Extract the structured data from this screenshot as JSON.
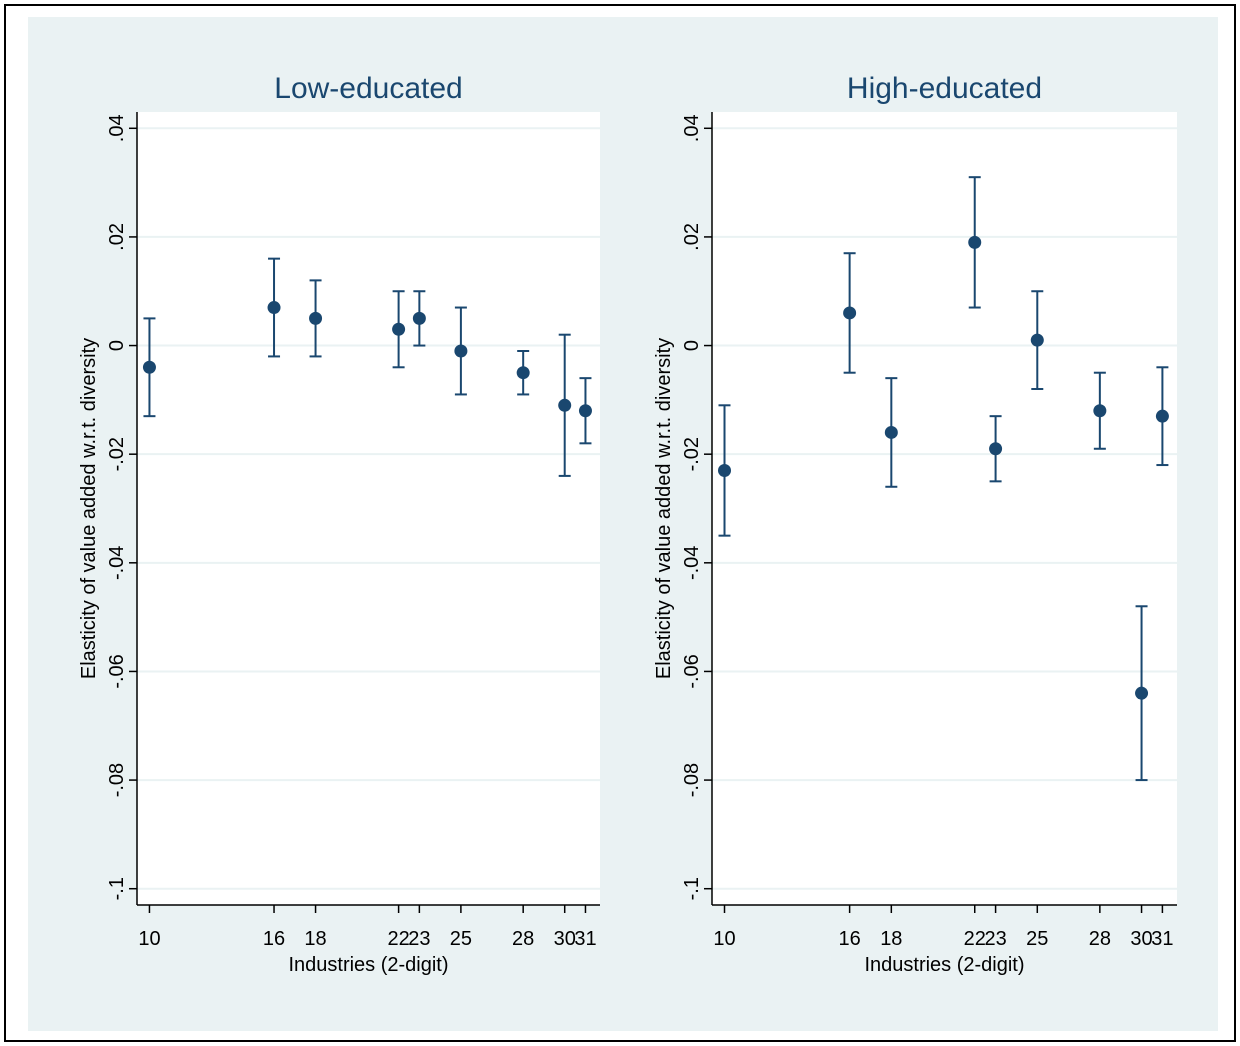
{
  "chart_data": [
    {
      "type": "errorbar",
      "title": "Low-educated",
      "x_label": "Industries (2-digit)",
      "y_label": "Elasticity of value added w.r.t. diversity",
      "x": [
        10,
        16,
        18,
        22,
        23,
        25,
        28,
        30,
        31
      ],
      "values": [
        -0.004,
        0.007,
        0.005,
        0.003,
        0.005,
        -0.001,
        -0.005,
        -0.011,
        -0.012
      ],
      "lower": [
        -0.013,
        -0.002,
        -0.002,
        -0.004,
        0,
        -0.009,
        -0.009,
        -0.024,
        -0.018
      ],
      "upper": [
        0.005,
        0.016,
        0.012,
        0.01,
        0.01,
        0.007,
        -0.001,
        0.002,
        -0.006
      ],
      "color": "#1a476f",
      "xlim": [
        9.4,
        31.7
      ],
      "xticks": [
        10,
        16,
        18,
        22,
        23,
        25,
        28,
        30,
        31
      ],
      "ylim": [
        -0.103,
        0.043
      ],
      "yticks": [
        {
          "value": -0.1,
          "label": "-.1"
        },
        {
          "value": -0.08,
          "label": "-.08"
        },
        {
          "value": -0.06,
          "label": "-.06"
        },
        {
          "value": -0.04,
          "label": "-.04"
        },
        {
          "value": -0.02,
          "label": "-.02"
        },
        0,
        {
          "value": 0.02,
          "label": ".02"
        },
        {
          "value": 0.04,
          "label": ".04"
        }
      ],
      "grid": true
    },
    {
      "type": "errorbar",
      "title": "High-educated",
      "x_label": "Industries (2-digit)",
      "y_label": "Elasticity of value added w.r.t. diversity",
      "x": [
        10,
        16,
        18,
        22,
        23,
        25,
        28,
        30,
        31
      ],
      "values": [
        -0.023,
        0.006,
        -0.016,
        0.019,
        -0.019,
        0.001,
        -0.012,
        -0.064,
        -0.013
      ],
      "lower": [
        -0.035,
        -0.005,
        -0.026,
        0.007,
        -0.025,
        -0.008,
        -0.019,
        -0.08,
        -0.022
      ],
      "upper": [
        -0.011,
        0.017,
        -0.006,
        0.031,
        -0.013,
        0.01,
        -0.005,
        -0.048,
        -0.004
      ],
      "color": "#1a476f",
      "xlim": [
        9.4,
        31.7
      ],
      "xticks": [
        10,
        16,
        18,
        22,
        23,
        25,
        28,
        30,
        31
      ],
      "ylim": [
        -0.103,
        0.043
      ],
      "yticks": [
        {
          "value": -0.1,
          "label": "-.1"
        },
        {
          "value": -0.08,
          "label": "-.08"
        },
        {
          "value": -0.06,
          "label": "-.06"
        },
        {
          "value": -0.04,
          "label": "-.04"
        },
        {
          "value": -0.02,
          "label": "-.02"
        },
        0,
        {
          "value": 0.02,
          "label": ".02"
        },
        {
          "value": 0.04,
          "label": ".04"
        }
      ],
      "grid": true
    }
  ]
}
